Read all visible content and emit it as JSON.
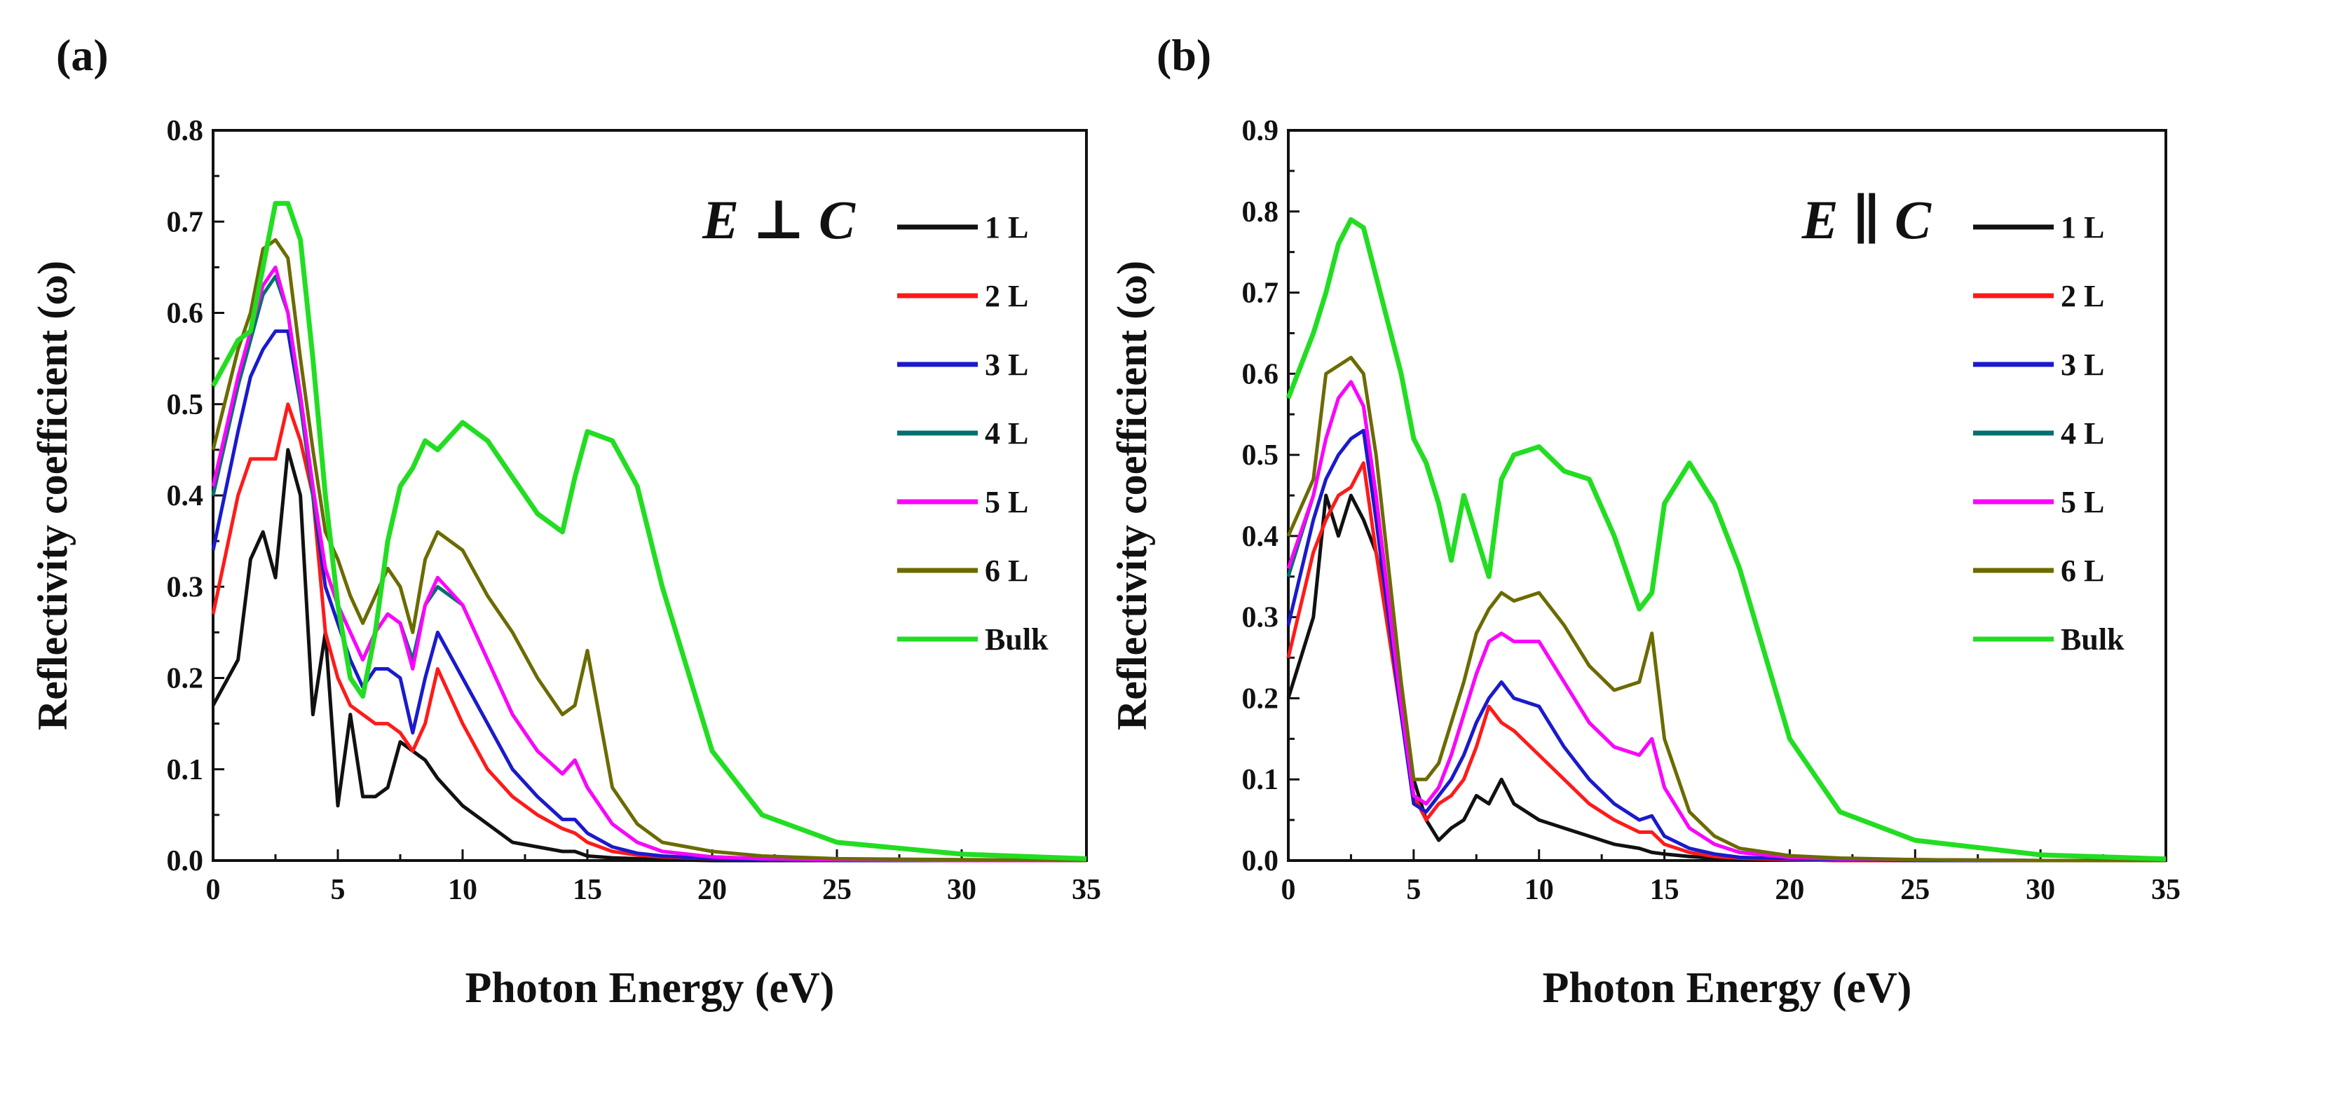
{
  "chart_data": [
    {
      "type": "line",
      "panel_label": "(a)",
      "polarization": "E ⊥ C",
      "xlabel": "Photon Energy (eV)",
      "ylabel": "Reflectivity coefficient (ω)",
      "xlim": [
        0,
        35
      ],
      "ylim": [
        0,
        0.8
      ],
      "xticks": [
        "0",
        "5",
        "10",
        "15",
        "20",
        "25",
        "30",
        "35"
      ],
      "yticks": [
        "0.0",
        "0.1",
        "0.2",
        "0.3",
        "0.4",
        "0.5",
        "0.6",
        "0.7",
        "0.8"
      ],
      "grid": false,
      "legend_position": "top-right",
      "x": [
        0,
        1,
        1.5,
        2,
        2.5,
        3,
        3.5,
        4,
        4.5,
        5,
        5.5,
        6,
        6.5,
        7,
        7.5,
        8,
        8.5,
        9,
        10,
        11,
        12,
        13,
        14,
        14.5,
        15,
        16,
        17,
        18,
        20,
        22,
        25,
        30,
        35
      ],
      "series": [
        {
          "name": "1 L",
          "color": "#111111",
          "values": [
            0.17,
            0.22,
            0.33,
            0.36,
            0.31,
            0.45,
            0.4,
            0.16,
            0.25,
            0.06,
            0.16,
            0.07,
            0.07,
            0.08,
            0.13,
            0.12,
            0.11,
            0.09,
            0.06,
            0.04,
            0.02,
            0.015,
            0.01,
            0.01,
            0.005,
            0.003,
            0.002,
            0.001,
            0,
            0,
            0,
            0,
            0
          ]
        },
        {
          "name": "2 L",
          "color": "#ff1a1a",
          "values": [
            0.27,
            0.4,
            0.44,
            0.44,
            0.44,
            0.5,
            0.46,
            0.4,
            0.25,
            0.2,
            0.17,
            0.16,
            0.15,
            0.15,
            0.14,
            0.12,
            0.15,
            0.21,
            0.15,
            0.1,
            0.07,
            0.05,
            0.035,
            0.03,
            0.02,
            0.01,
            0.006,
            0.004,
            0.002,
            0.001,
            0,
            0,
            0
          ]
        },
        {
          "name": "3 L",
          "color": "#1a1acc",
          "values": [
            0.34,
            0.47,
            0.53,
            0.56,
            0.58,
            0.58,
            0.5,
            0.4,
            0.3,
            0.26,
            0.22,
            0.19,
            0.21,
            0.21,
            0.2,
            0.14,
            0.2,
            0.25,
            0.2,
            0.15,
            0.1,
            0.07,
            0.045,
            0.045,
            0.03,
            0.015,
            0.008,
            0.005,
            0.002,
            0.001,
            0,
            0,
            0
          ]
        },
        {
          "name": "4 L",
          "color": "#007070",
          "values": [
            0.4,
            0.52,
            0.57,
            0.62,
            0.64,
            0.6,
            0.5,
            0.4,
            0.32,
            0.28,
            0.25,
            0.22,
            0.25,
            0.27,
            0.26,
            0.22,
            0.28,
            0.3,
            0.28,
            0.22,
            0.16,
            0.12,
            0.095,
            0.11,
            0.08,
            0.04,
            0.02,
            0.01,
            0.004,
            0.002,
            0.001,
            0,
            0
          ]
        },
        {
          "name": "5 L",
          "color": "#ff00ff",
          "values": [
            0.41,
            0.53,
            0.58,
            0.63,
            0.65,
            0.6,
            0.51,
            0.41,
            0.32,
            0.28,
            0.25,
            0.22,
            0.25,
            0.27,
            0.26,
            0.21,
            0.28,
            0.31,
            0.28,
            0.22,
            0.16,
            0.12,
            0.095,
            0.11,
            0.08,
            0.04,
            0.02,
            0.01,
            0.004,
            0.002,
            0.001,
            0,
            0
          ]
        },
        {
          "name": "6 L",
          "color": "#6b6b00",
          "values": [
            0.45,
            0.56,
            0.6,
            0.67,
            0.68,
            0.66,
            0.55,
            0.45,
            0.36,
            0.33,
            0.29,
            0.26,
            0.29,
            0.32,
            0.3,
            0.25,
            0.33,
            0.36,
            0.34,
            0.29,
            0.25,
            0.2,
            0.16,
            0.17,
            0.23,
            0.08,
            0.04,
            0.02,
            0.01,
            0.005,
            0.002,
            0.001,
            0
          ]
        },
        {
          "name": "Bulk",
          "color": "#22dd22",
          "values": [
            0.52,
            0.57,
            0.58,
            0.65,
            0.72,
            0.72,
            0.68,
            0.55,
            0.4,
            0.28,
            0.2,
            0.18,
            0.25,
            0.35,
            0.41,
            0.43,
            0.46,
            0.45,
            0.48,
            0.46,
            0.42,
            0.38,
            0.36,
            0.42,
            0.47,
            0.46,
            0.41,
            0.3,
            0.12,
            0.05,
            0.02,
            0.007,
            0.002
          ]
        }
      ]
    },
    {
      "type": "line",
      "panel_label": "(b)",
      "polarization": "E ∥ C",
      "xlabel": "Photon Energy (eV)",
      "ylabel": "Reflectivity coefficient (ω)",
      "xlim": [
        0,
        35
      ],
      "ylim": [
        0,
        0.9
      ],
      "xticks": [
        "0",
        "5",
        "10",
        "15",
        "20",
        "25",
        "30",
        "35"
      ],
      "yticks": [
        "0.0",
        "0.1",
        "0.2",
        "0.3",
        "0.4",
        "0.5",
        "0.6",
        "0.7",
        "0.8",
        "0.9"
      ],
      "grid": false,
      "legend_position": "top-right",
      "x": [
        0,
        1,
        1.5,
        2,
        2.5,
        3,
        3.5,
        4,
        4.5,
        5,
        5.5,
        6,
        6.5,
        7,
        7.5,
        8,
        8.5,
        9,
        10,
        11,
        12,
        13,
        14,
        14.5,
        15,
        16,
        17,
        18,
        20,
        22,
        25,
        30,
        35
      ],
      "series": [
        {
          "name": "1 L",
          "color": "#111111",
          "values": [
            0.2,
            0.3,
            0.45,
            0.4,
            0.45,
            0.42,
            0.38,
            0.3,
            0.2,
            0.1,
            0.05,
            0.025,
            0.04,
            0.05,
            0.08,
            0.07,
            0.1,
            0.07,
            0.05,
            0.04,
            0.03,
            0.02,
            0.015,
            0.01,
            0.008,
            0.005,
            0.003,
            0.002,
            0.001,
            0,
            0,
            0,
            0
          ]
        },
        {
          "name": "2 L",
          "color": "#ff1a1a",
          "values": [
            0.25,
            0.38,
            0.42,
            0.45,
            0.46,
            0.49,
            0.38,
            0.28,
            0.18,
            0.08,
            0.05,
            0.07,
            0.08,
            0.1,
            0.14,
            0.19,
            0.17,
            0.16,
            0.13,
            0.1,
            0.07,
            0.05,
            0.035,
            0.035,
            0.02,
            0.01,
            0.005,
            0.003,
            0.001,
            0,
            0,
            0,
            0
          ]
        },
        {
          "name": "3 L",
          "color": "#1a1acc",
          "values": [
            0.29,
            0.42,
            0.47,
            0.5,
            0.52,
            0.53,
            0.42,
            0.3,
            0.18,
            0.07,
            0.06,
            0.08,
            0.1,
            0.13,
            0.17,
            0.2,
            0.22,
            0.2,
            0.19,
            0.14,
            0.1,
            0.07,
            0.05,
            0.055,
            0.03,
            0.015,
            0.008,
            0.004,
            0.002,
            0.001,
            0,
            0,
            0
          ]
        },
        {
          "name": "4 L",
          "color": "#007070",
          "values": [
            0.35,
            0.45,
            0.52,
            0.57,
            0.59,
            0.56,
            0.45,
            0.32,
            0.19,
            0.08,
            0.07,
            0.09,
            0.13,
            0.18,
            0.23,
            0.27,
            0.28,
            0.27,
            0.27,
            0.22,
            0.17,
            0.14,
            0.13,
            0.15,
            0.09,
            0.04,
            0.02,
            0.01,
            0.004,
            0.002,
            0.001,
            0,
            0
          ]
        },
        {
          "name": "5 L",
          "color": "#ff00ff",
          "values": [
            0.36,
            0.45,
            0.52,
            0.57,
            0.59,
            0.56,
            0.45,
            0.32,
            0.19,
            0.08,
            0.07,
            0.09,
            0.13,
            0.18,
            0.23,
            0.27,
            0.28,
            0.27,
            0.27,
            0.22,
            0.17,
            0.14,
            0.13,
            0.15,
            0.09,
            0.04,
            0.02,
            0.01,
            0.004,
            0.002,
            0.001,
            0,
            0
          ]
        },
        {
          "name": "6 L",
          "color": "#6b6b00",
          "values": [
            0.4,
            0.47,
            0.6,
            0.61,
            0.62,
            0.6,
            0.5,
            0.36,
            0.22,
            0.1,
            0.1,
            0.12,
            0.17,
            0.22,
            0.28,
            0.31,
            0.33,
            0.32,
            0.33,
            0.29,
            0.24,
            0.21,
            0.22,
            0.28,
            0.15,
            0.06,
            0.03,
            0.015,
            0.006,
            0.003,
            0.001,
            0,
            0
          ]
        },
        {
          "name": "Bulk",
          "color": "#22dd22",
          "values": [
            0.57,
            0.65,
            0.7,
            0.76,
            0.79,
            0.78,
            0.72,
            0.66,
            0.6,
            0.52,
            0.49,
            0.44,
            0.37,
            0.45,
            0.4,
            0.35,
            0.47,
            0.5,
            0.51,
            0.48,
            0.47,
            0.4,
            0.31,
            0.33,
            0.44,
            0.49,
            0.44,
            0.36,
            0.15,
            0.06,
            0.025,
            0.007,
            0.002
          ]
        }
      ]
    }
  ]
}
